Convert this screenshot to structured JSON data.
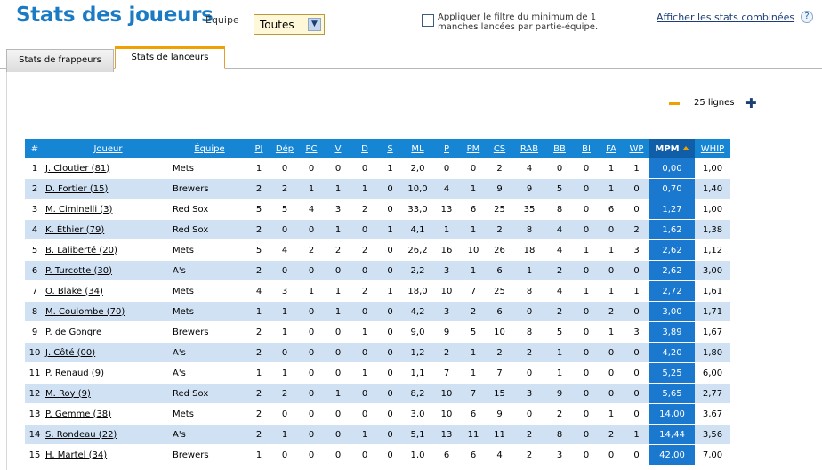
{
  "header": {
    "title": "Stats des joueurs",
    "team_label": "Équipe",
    "team_select_value": "Toutes",
    "filter_text": "Appliquer le filtre du minimum de 1 manches lancées par partie-équipe.",
    "combined_link": "Afficher les stats combinées"
  },
  "tabs": [
    {
      "label": "Stats de frappeurs",
      "active": false
    },
    {
      "label": "Stats de lanceurs",
      "active": true
    }
  ],
  "rows_control": {
    "label": "25 lignes"
  },
  "colors": {
    "accent": "#1685d3",
    "sorted_header": "#115ea8",
    "sorted_cell": "#1b78cf",
    "row_alt": "#cfe1f3",
    "tab_accent": "#f0a000"
  },
  "table": {
    "columns": [
      "#",
      "Joueur",
      "Équipe",
      "PJ",
      "Dép",
      "PC",
      "V",
      "D",
      "S",
      "ML",
      "P",
      "PM",
      "CS",
      "RAB",
      "BB",
      "BI",
      "FA",
      "WP",
      "MPM",
      "WHIP"
    ],
    "sorted_column": "MPM",
    "rows": [
      [
        "1",
        "J. Cloutier (81)",
        "Mets",
        "1",
        "0",
        "0",
        "0",
        "0",
        "1",
        "2,0",
        "0",
        "0",
        "2",
        "4",
        "0",
        "0",
        "1",
        "1",
        "0,00",
        "1,00"
      ],
      [
        "2",
        "D. Fortier (15)",
        "Brewers",
        "2",
        "2",
        "1",
        "1",
        "1",
        "0",
        "10,0",
        "4",
        "1",
        "9",
        "9",
        "5",
        "0",
        "1",
        "0",
        "0,70",
        "1,40"
      ],
      [
        "3",
        "M. Ciminelli (3)",
        "Red Sox",
        "5",
        "5",
        "4",
        "3",
        "2",
        "0",
        "33,0",
        "13",
        "6",
        "25",
        "35",
        "8",
        "0",
        "6",
        "0",
        "1,27",
        "1,00"
      ],
      [
        "4",
        "K. Éthier (79)",
        "Red Sox",
        "2",
        "0",
        "0",
        "1",
        "0",
        "1",
        "4,1",
        "1",
        "1",
        "2",
        "8",
        "4",
        "0",
        "0",
        "2",
        "1,62",
        "1,38"
      ],
      [
        "5",
        "B. Laliberté (20)",
        "Mets",
        "5",
        "4",
        "2",
        "2",
        "2",
        "0",
        "26,2",
        "16",
        "10",
        "26",
        "18",
        "4",
        "1",
        "1",
        "3",
        "2,62",
        "1,12"
      ],
      [
        "6",
        "P. Turcotte (30)",
        "A's",
        "2",
        "0",
        "0",
        "0",
        "0",
        "0",
        "2,2",
        "3",
        "1",
        "6",
        "1",
        "2",
        "0",
        "0",
        "0",
        "2,62",
        "3,00"
      ],
      [
        "7",
        "O. Blake (34)",
        "Mets",
        "4",
        "3",
        "1",
        "1",
        "2",
        "1",
        "18,0",
        "10",
        "7",
        "25",
        "8",
        "4",
        "1",
        "1",
        "1",
        "2,72",
        "1,61"
      ],
      [
        "8",
        "M. Coulombe (70)",
        "Mets",
        "1",
        "1",
        "0",
        "1",
        "0",
        "0",
        "4,2",
        "3",
        "2",
        "6",
        "0",
        "2",
        "0",
        "2",
        "0",
        "3,00",
        "1,71"
      ],
      [
        "9",
        "P. de Gongre",
        "Brewers",
        "2",
        "1",
        "0",
        "0",
        "1",
        "0",
        "9,0",
        "9",
        "5",
        "10",
        "8",
        "5",
        "0",
        "1",
        "3",
        "3,89",
        "1,67"
      ],
      [
        "10",
        "J. Côté (00)",
        "A's",
        "2",
        "0",
        "0",
        "0",
        "0",
        "0",
        "1,2",
        "2",
        "1",
        "2",
        "2",
        "1",
        "0",
        "0",
        "0",
        "4,20",
        "1,80"
      ],
      [
        "11",
        "P. Renaud (9)",
        "A's",
        "1",
        "1",
        "0",
        "0",
        "1",
        "0",
        "1,1",
        "7",
        "1",
        "7",
        "0",
        "1",
        "0",
        "0",
        "0",
        "5,25",
        "6,00"
      ],
      [
        "12",
        "M. Roy (9)",
        "Red Sox",
        "2",
        "2",
        "0",
        "1",
        "0",
        "0",
        "8,2",
        "10",
        "7",
        "15",
        "3",
        "9",
        "0",
        "0",
        "0",
        "5,65",
        "2,77"
      ],
      [
        "13",
        "P. Gemme (38)",
        "Mets",
        "2",
        "0",
        "0",
        "0",
        "0",
        "0",
        "3,0",
        "10",
        "6",
        "9",
        "0",
        "2",
        "0",
        "1",
        "0",
        "14,00",
        "3,67"
      ],
      [
        "14",
        "S. Rondeau (22)",
        "A's",
        "2",
        "1",
        "0",
        "0",
        "1",
        "0",
        "5,1",
        "13",
        "11",
        "11",
        "2",
        "8",
        "0",
        "2",
        "1",
        "14,44",
        "3,56"
      ],
      [
        "15",
        "H. Martel (34)",
        "Brewers",
        "1",
        "0",
        "0",
        "0",
        "0",
        "0",
        "1,0",
        "6",
        "6",
        "4",
        "2",
        "3",
        "0",
        "0",
        "0",
        "42,00",
        "7,00"
      ]
    ]
  }
}
